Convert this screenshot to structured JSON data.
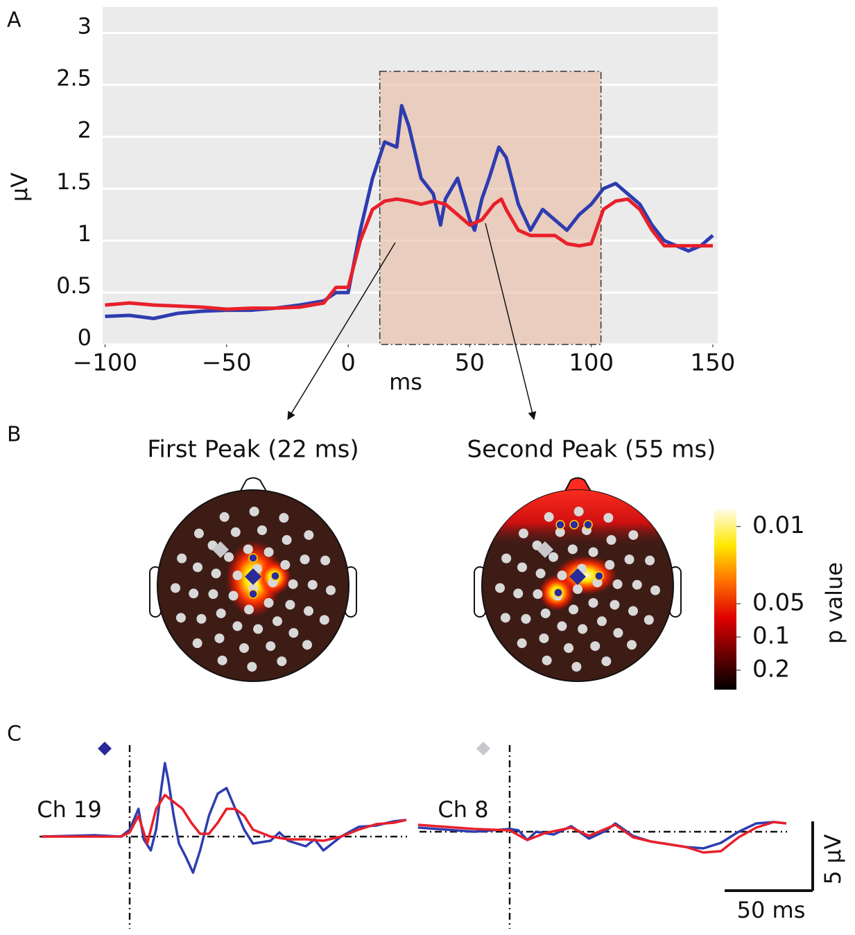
{
  "chart_data": [
    {
      "type": "line",
      "panel": "A",
      "xlabel": "ms",
      "ylabel": "μV",
      "xlim": [
        -101,
        152
      ],
      "ylim": [
        0,
        3.25
      ],
      "xticks": [
        {
          "value": -100,
          "label": "−100"
        },
        {
          "value": -50,
          "label": "−50"
        },
        0,
        50,
        100,
        150
      ],
      "yticks": [
        0,
        0.5,
        1,
        1.5,
        2,
        2.5,
        3
      ],
      "grid": true,
      "shaded_region": {
        "x": [
          13,
          104
        ],
        "y": [
          0,
          2.63
        ]
      },
      "series": [
        {
          "color": "#2e3cb0",
          "x": [
            -100,
            -90,
            -80,
            -70,
            -60,
            -50,
            -40,
            -30,
            -20,
            -10,
            -5,
            0,
            5,
            10,
            15,
            20,
            22,
            25,
            30,
            35,
            38,
            40,
            45,
            50,
            52,
            55,
            58,
            62,
            65,
            70,
            75,
            80,
            85,
            90,
            95,
            100,
            105,
            110,
            115,
            120,
            125,
            130,
            135,
            140,
            145,
            150
          ],
          "values": [
            0.27,
            0.28,
            0.25,
            0.3,
            0.32,
            0.33,
            0.33,
            0.35,
            0.38,
            0.42,
            0.5,
            0.5,
            1.1,
            1.6,
            1.95,
            1.9,
            2.3,
            2.1,
            1.6,
            1.45,
            1.15,
            1.4,
            1.6,
            1.2,
            1.1,
            1.4,
            1.6,
            1.9,
            1.8,
            1.35,
            1.1,
            1.3,
            1.2,
            1.1,
            1.25,
            1.35,
            1.5,
            1.55,
            1.45,
            1.35,
            1.15,
            1.0,
            0.95,
            0.9,
            0.95,
            1.05
          ]
        },
        {
          "color": "#e8202a",
          "x": [
            -100,
            -90,
            -80,
            -70,
            -60,
            -50,
            -40,
            -30,
            -20,
            -10,
            -5,
            0,
            5,
            10,
            15,
            20,
            25,
            30,
            35,
            40,
            45,
            50,
            55,
            60,
            63,
            65,
            70,
            75,
            80,
            85,
            90,
            95,
            100,
            105,
            110,
            115,
            120,
            125,
            130,
            140,
            150
          ],
          "values": [
            0.38,
            0.4,
            0.38,
            0.37,
            0.36,
            0.34,
            0.35,
            0.35,
            0.36,
            0.4,
            0.55,
            0.55,
            1.0,
            1.3,
            1.38,
            1.4,
            1.38,
            1.35,
            1.38,
            1.35,
            1.25,
            1.15,
            1.2,
            1.35,
            1.4,
            1.3,
            1.1,
            1.05,
            1.05,
            1.05,
            0.97,
            0.95,
            0.97,
            1.3,
            1.38,
            1.4,
            1.3,
            1.1,
            0.95,
            0.95,
            0.95
          ]
        }
      ]
    },
    {
      "type": "topomap",
      "panel": "B",
      "titles": [
        "First Peak (22 ms)",
        "Second Peak (55 ms)"
      ],
      "colorbar": {
        "label": "p value",
        "ticks": [
          0.01,
          0.05,
          0.1,
          0.2
        ],
        "clim": [
          0.007,
          0.3
        ],
        "scale": "log"
      }
    },
    {
      "type": "line",
      "panel": "C",
      "scalebar": {
        "y": {
          "value": 5,
          "label": "5 μV"
        },
        "x": {
          "value": 50,
          "label": "50 ms"
        }
      },
      "subplots": [
        {
          "label": "Ch 19",
          "series": [
            {
              "color": "#2e3cb0",
              "x": [
                -50,
                -20,
                -5,
                0,
                5,
                8,
                12,
                15,
                18,
                20,
                22,
                25,
                28,
                32,
                36,
                40,
                45,
                50,
                55,
                60,
                65,
                70,
                80,
                85,
                90,
                100,
                105,
                110,
                120,
                130,
                140,
                150,
                157
              ],
              "values": [
                0,
                0.1,
                0,
                0.5,
                2,
                -0.2,
                -1,
                0.5,
                3.5,
                5.3,
                4,
                1.5,
                -0.5,
                -1.5,
                -2.6,
                -1,
                1.5,
                3.1,
                3.5,
                2,
                0.5,
                -0.5,
                -0.3,
                0.3,
                -0.3,
                -0.7,
                -0.2,
                -1,
                0,
                0.7,
                0.8,
                1.1,
                1.2
              ]
            },
            {
              "color": "#e8202a",
              "x": [
                -50,
                -5,
                0,
                5,
                10,
                15,
                20,
                25,
                30,
                35,
                40,
                45,
                50,
                55,
                60,
                65,
                70,
                80,
                90,
                100,
                110,
                120,
                130,
                140,
                150,
                157
              ],
              "values": [
                0,
                0,
                0.3,
                1.5,
                -0.5,
                2,
                3,
                2.5,
                2,
                1,
                0.2,
                0.2,
                1,
                2,
                2,
                1.5,
                0.5,
                0,
                -0.2,
                -0.2,
                -0.3,
                0,
                0.5,
                0.9,
                1,
                1.2
              ]
            }
          ]
        },
        {
          "label": "Ch 8",
          "series": [
            {
              "color": "#2e3cb0",
              "x": [
                -52,
                -20,
                0,
                5,
                10,
                15,
                25,
                35,
                45,
                55,
                60,
                70,
                80,
                100,
                110,
                120,
                130,
                140,
                150,
                157
              ],
              "values": [
                0.3,
                0,
                0.2,
                0.1,
                -0.6,
                0,
                -0.2,
                0.4,
                -0.5,
                0.1,
                0.6,
                -0.3,
                -0.7,
                -1.1,
                -1.2,
                -0.8,
                0,
                0.6,
                0.7,
                0.6
              ]
            },
            {
              "color": "#e8202a",
              "x": [
                -52,
                -20,
                0,
                10,
                20,
                35,
                45,
                60,
                70,
                80,
                100,
                110,
                120,
                130,
                140,
                150,
                157
              ],
              "values": [
                0.5,
                0.2,
                0.1,
                -0.6,
                -0.1,
                0.3,
                -0.3,
                0.5,
                -0.4,
                -0.7,
                -1.1,
                -1.5,
                -1.4,
                -0.4,
                0.3,
                0.7,
                0.6
              ]
            }
          ]
        }
      ]
    }
  ]
}
